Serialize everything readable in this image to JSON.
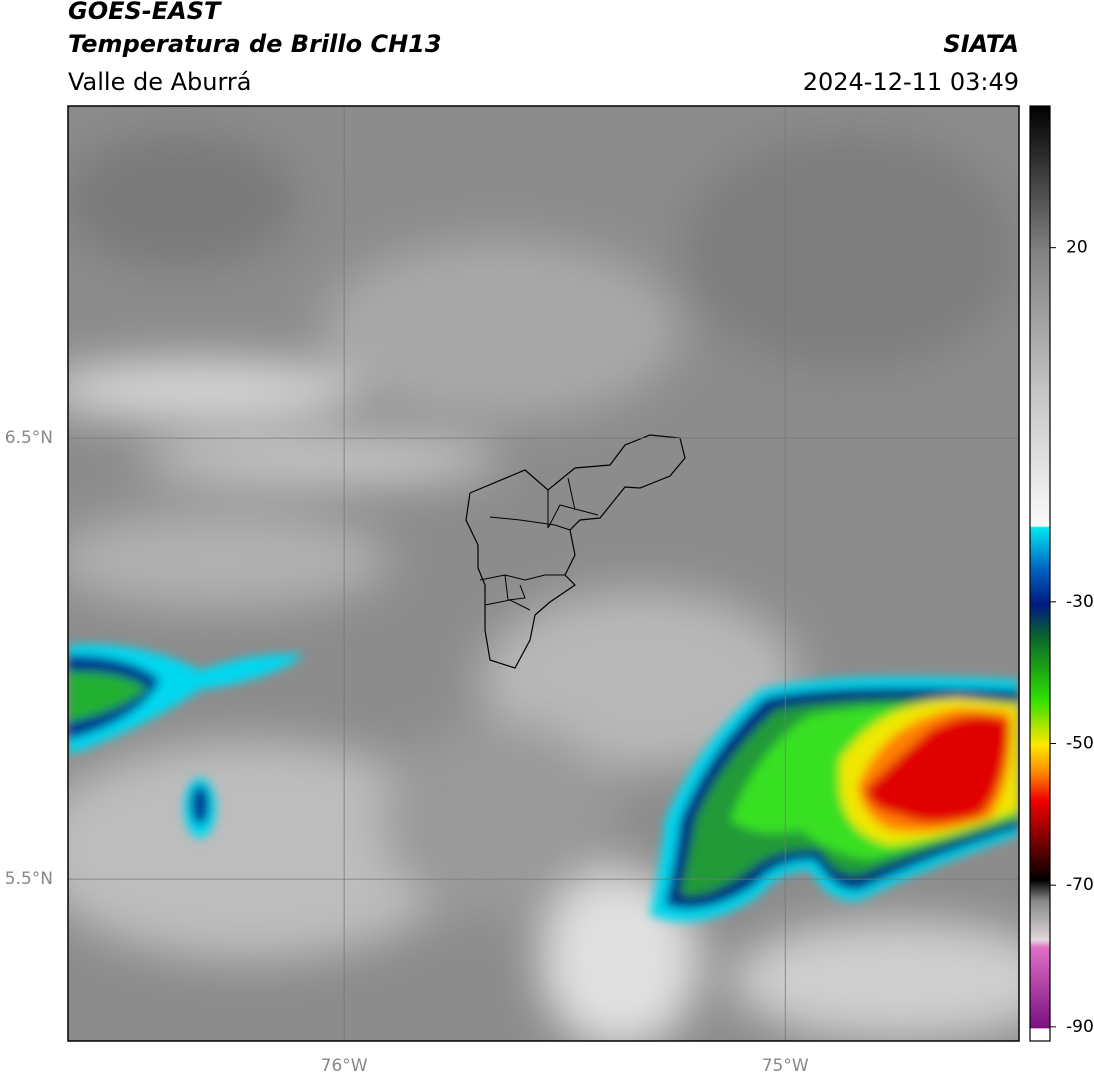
{
  "header": {
    "satellite": "GOES-EAST",
    "product": "Temperatura de Brillo CH13",
    "region": "Valle de Aburrá",
    "agency": "SIATA",
    "datetime": "2024-12-11 03:49"
  },
  "map": {
    "xlim": [
      -76.626,
      -74.47
    ],
    "ylim": [
      5.133,
      7.253
    ],
    "xticks": [
      {
        "value": -76,
        "label": "76°W"
      },
      {
        "value": -75,
        "label": "75°W"
      }
    ],
    "yticks": [
      {
        "value": 6.5,
        "label": "6.5°N"
      },
      {
        "value": 5.5,
        "label": "5.5°N"
      }
    ],
    "grid": true
  },
  "colorbar": {
    "lim": [
      -92,
      40
    ],
    "ticks": [
      20,
      -30,
      -50,
      -70,
      -90
    ]
  }
}
